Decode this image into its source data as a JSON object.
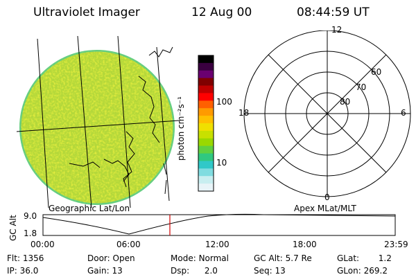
{
  "header": {
    "instrument": "Ultraviolet Imager",
    "date": "12 Aug 00",
    "time": "08:44:59  UT"
  },
  "left_panel": {
    "caption": "Geographic Lat/Lon"
  },
  "colorbar": {
    "unit_label": "photon cm⁻²s⁻¹",
    "tick_labels": [
      "100",
      "10"
    ],
    "colors": [
      "#000000",
      "#3a0040",
      "#6a0070",
      "#800000",
      "#c00000",
      "#ff0000",
      "#ff6000",
      "#ff9a00",
      "#ffc000",
      "#f0e000",
      "#c8e000",
      "#9ad800",
      "#60d040",
      "#30c880",
      "#30c8c8",
      "#80dce0",
      "#c8eef0",
      "#e8f4f8"
    ]
  },
  "polar_panel": {
    "caption": "Apex MLat/MLT",
    "mlt_labels": {
      "top": "12",
      "left": "18",
      "right": "6",
      "bottom": "0"
    },
    "lat_labels": [
      "60",
      "70",
      "80"
    ]
  },
  "timeline": {
    "y_axis_title": "GC Alt",
    "y_ticks": [
      "9.0",
      "1.8"
    ],
    "x_ticks": [
      "00:00",
      "06:00",
      "12:00",
      "18:00",
      "23:59"
    ]
  },
  "footer": {
    "flt_label": "Flt:",
    "flt_value": "1356",
    "ip_label": "IP:",
    "ip_value": "36.0",
    "door_label": "Door:",
    "door_value": "Open",
    "gain_label": "Gain:",
    "gain_value": "13",
    "mode_label": "Mode:",
    "mode_value": "Normal",
    "dsp_label": "Dsp:",
    "dsp_value": "2.0",
    "gcalt_label": "GC Alt:",
    "gcalt_value": "5.7 Re",
    "seq_label": "Seq:",
    "seq_value": "13",
    "glat_label": "GLat:",
    "glat_value": "1.2",
    "glon_label": "GLon:",
    "glon_value": "269.2"
  }
}
